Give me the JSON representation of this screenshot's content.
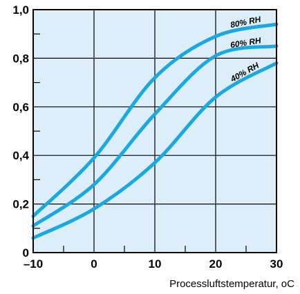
{
  "chart_data": {
    "type": "line",
    "title": "",
    "xlabel": "Processluftstemperatur, oC",
    "ylabel": "",
    "xlim": [
      -10,
      30
    ],
    "ylim": [
      0,
      1.0
    ],
    "x_ticks": [
      {
        "value": -10,
        "label": "–10"
      },
      {
        "value": 0,
        "label": "0"
      },
      {
        "value": 10,
        "label": "10"
      },
      {
        "value": 20,
        "label": "20"
      },
      {
        "value": 30,
        "label": "30"
      }
    ],
    "y_ticks": [
      {
        "value": 0,
        "label": "0"
      },
      {
        "value": 0.2,
        "label": "0,2"
      },
      {
        "value": 0.4,
        "label": "0,4"
      },
      {
        "value": 0.6,
        "label": "0,6"
      },
      {
        "value": 0.8,
        "label": "0,8"
      },
      {
        "value": 1.0,
        "label": "1,0"
      }
    ],
    "grid": true,
    "background_color": "#dbeef9",
    "line_color": "#1ba8e0",
    "series": [
      {
        "name": "80% RH",
        "x": [
          -10,
          0,
          10,
          20,
          30
        ],
        "values": [
          0.15,
          0.39,
          0.72,
          0.89,
          0.94
        ]
      },
      {
        "name": "60% RH",
        "x": [
          -10,
          0,
          10,
          20,
          30
        ],
        "values": [
          0.11,
          0.28,
          0.57,
          0.81,
          0.85
        ]
      },
      {
        "name": "40% RH",
        "x": [
          -10,
          0,
          10,
          20,
          30
        ],
        "values": [
          0.06,
          0.18,
          0.37,
          0.64,
          0.78
        ]
      }
    ]
  }
}
